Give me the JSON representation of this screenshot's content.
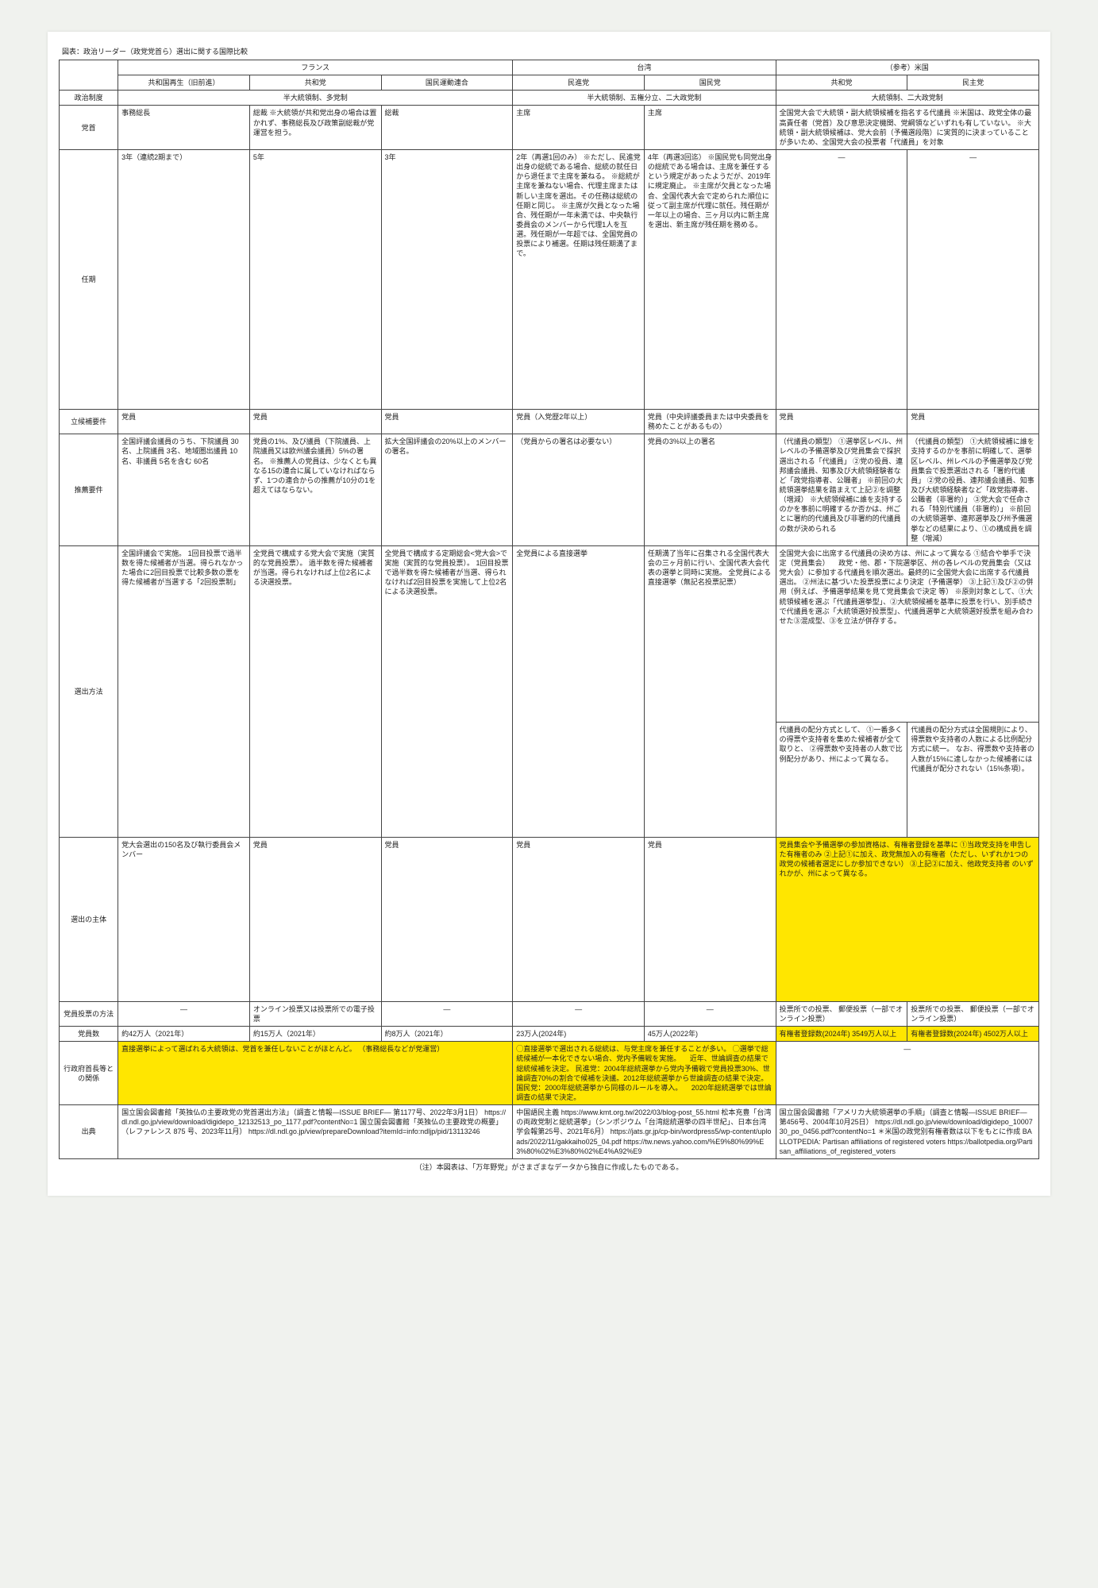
{
  "caption": "図表：政治リーダー（政党党首ら）選出に関する国際比較",
  "countries": [
    "フランス",
    "台湾",
    "（参考）米国"
  ],
  "parties": [
    "共和国再生（旧前進）",
    "共和党",
    "国民運動連合",
    "民進党",
    "国民党",
    "共和党",
    "民主党"
  ],
  "systems": {
    "france": "半大統領制、多党制",
    "taiwan": "半大統領制、五権分立、二大政党制",
    "us": "大統領制、二大政党制"
  },
  "rows": {
    "r1": {
      "label": "政治制度"
    },
    "r2": {
      "label": "党首",
      "fr1": "事務総長",
      "fr2": "総裁\n※大統領が共和党出身の場合は置かれず、事務総長及び政策副総裁が党運営を担う。",
      "fr3": "総裁",
      "tw1": "主席",
      "tw2": "主席",
      "us": "全国党大会で大統領・副大統領候補を指名する代議員\n※米国は、政党全体の最高責任者（党首）及び意思決定機関、党綱領などいずれも有していない。\n※大統領・副大統領候補は、党大会前（予備選段階）に実質的に決まっていることが多いため、全国党大会の投票者「代議員」を対象"
    },
    "r3": {
      "label": "任期",
      "fr1": "3年（連続2期まで）",
      "fr2": "5年",
      "fr3": "3年",
      "tw1": "2年（再選1回のみ）\n※ただし、民進党出身の総統である場合、総統の就任日から退任まで主席を兼ねる。\n※総統が主席を兼ねない場合、代理主席または新しい主席を選出。その任務は総統の任期と同じ。\n※主席が欠員となった場合、残任期が一年未満では、中央執行委員会のメンバーから代理1人を互選。残任期が一年超では、全国党員の投票により補選。任期は残任期満了まで。",
      "tw2": "4年（再選3回迄）\n※国民党も同党出身の総統である場合は、主席を兼任するという規定があったようだが、2019年に規定廃止。\n※主席が欠員となった場合、全国代表大会で定められた順位に従って副主席が代理に就任。残任期が一年以上の場合、三ヶ月以内に新主席を選出、新主席が残任期を務める。",
      "us1": "—",
      "us2": "—"
    },
    "r4": {
      "label": "立候補要件",
      "fr1": "党員",
      "fr2": "党員",
      "fr3": "党員",
      "tw1": "党員（入党歴2年以上）",
      "tw2": "党員（中央評議委員または中央委員を務めたことがあるもの）",
      "us1": "党員",
      "us2": "党員"
    },
    "r5": {
      "label": "推薦要件",
      "fr1": "全国評議会議員のうち、下院議員 30名、上院議員 3名、地域圏出議員 10名、非議員 5名を含む 60名",
      "fr2": "党員の1%、及び議員（下院議員、上院議員又は欧州議会議員）5%の署名。\n\n※推薦人の党員は、少なくとも異なる15の連合に属していなければならず、1つの連合からの推薦が10分の1を超えてはならない。",
      "fr3": "拡大全国評議会の20%以上のメンバーの署名。",
      "tw1": "（党員からの署名は必要ない）",
      "tw2": "党員の3%以上の署名",
      "us1": "（代議員の類型）\n①選挙区レベル、州レベルの予備選挙及び党員集会で採択選出される「代議員」\n②党の役員、連邦議会議員、知事及び大統領経験者など「政党指導者、公職者」\n※前回の大統領選挙結果を踏まえて上記②を調整（増減）\n※大統領候補に誰を支持するのかを事前に明確するか否かは、州ごとに署約的代議員及び非署約的代議員の数が決められる",
      "us2": "（代議員の類型）\n①大統領候補に誰を支持するのかを事前に明確して、選挙区レベル、州レベルの予備選挙及び党員集会で投票選出される「署約代議員」\n②党の役員、連邦議会議員、知事及び大統領経験者など「政党指導者、公職者（非署約）」\n③党大会で任命される「特別代議員（非署約）」\n※前回の大統領選挙、連邦選挙及び州予備選挙などの結果により、①の構成員を調整（増減）"
    },
    "r6": {
      "label": "選出方法",
      "fr1": "全国評議会で実施。\n1回目投票で過半数を得た候補者が当選。得られなかった場合に2回目投票で比較多数の票を得た候補者が当選する「2回投票制」",
      "fr2": "全党員で構成する党大会で実施（実質的な党員投票）。\n過半数を得た候補者が当選。得られなければ上位2名による決選投票。",
      "fr3": "全党員で構成する定期総会<党大会>で実施（実質的な党員投票）。\n1回目投票で過半数を得た候補者が当選、得られなければ2回目投票を実施して上位2名による決選投票。",
      "tw1": "全党員による直接選挙",
      "tw2": "任期満了当年に召集される全国代表大会の三ヶ月前に行い、全国代表大会代表の選挙と同時に実施。\n全党員による直接選挙（無記名投票記票）",
      "us": "全国党大会に出席する代議員の決め方は、州によって異なる\n①結合や挙手で決定（党員集会）\n　政党・他、郡・下院選挙区、州の各レベルの党員集会（又は党大会）に参加する代議員を順次選出。最終的に全国党大会に出席する代議員選出。\n②州法に基づいた投票投票により決定（予備選挙）\n③上記①及び②の併用（例えば、予備選挙結果を見て党員集会で決定 等）\n\n※原則対象として、①大統領候補を選ぶ「代議員選挙型」、②大統領候補を基準に投票を行い、別手続きで代議員を選ぶ「大統領選好投票型」、代議員選挙と大統領選好投票を組み合わせた③混成型、③を立法が併存する。",
      "us1b": "代議員の配分方式として、\n①一番多くの得票や支持者を集めた候補者が全て取りと、\n②得票数や支持者の人数で比例配分があり、州によって異なる。",
      "us2b": "代議員の配分方式は全国規則により、得票数や支持者の人数による比例配分方式に統一。\nなお、得票数や支持者の人数が15%に達しなかった候補者には代議員が配分されない（15%条項）。"
    },
    "r7": {
      "label": "選出の主体",
      "fr1": "党大会選出の150名及び執行委員会メンバー",
      "fr2": "党員",
      "fr3": "党員",
      "tw1": "党員",
      "tw2": "党員",
      "us": "党員集会や予備選挙の参加資格は、有権者登録を基準に\n①当政党支持を申告した有権者のみ\n②上記①に加え、政党無加入の有権者（ただし、いずれか1つの政党の候補者選定にしか参加できない）\n③上記②に加え、他政党支持者\nのいずれかが、州によって異なる。"
    },
    "r8": {
      "label": "党員投票の方法",
      "fr1": "—",
      "fr2": "オンライン投票又は投票所での電子投票",
      "fr3": "—",
      "tw1": "—",
      "tw2": "—",
      "us1": "投票所での投票、\n郵便投票（一部でオンライン投票）",
      "us2": "投票所での投票、\n郵便投票（一部でオンライン投票）"
    },
    "r9": {
      "label": "党員数",
      "fr1": "約42万人（2021年）",
      "fr2": "約15万人（2021年）",
      "fr3": "約8万人（2021年）",
      "tw1": "23万人(2024年)",
      "tw2": "45万人(2022年)",
      "us1": "有権者登録数(2024年)\n3549万人以上",
      "us2": "有権者登録数(2024年)\n4502万人以上"
    },
    "r10": {
      "label": "行政府首長等との関係",
      "fr": "直接選挙によって選ばれる大統領は、党首を兼任しないことがほとんど。\n（事務総長などが党運営）",
      "tw": "◯直接選挙で選出される総統は、与党主席を兼任することが多い。\n◯選挙で総統候補が一本化できない場合、党内予備戦を実施。\n　近年、世論調査の結果で総統候補を決定。\n民進党：2004年総統選挙から党内予備戦で党員投票30%、世論調査70%の割合で候補を決議。2012年総統選挙から世論調査の結果で決定。\n国民党：2000年総統選挙から同様のルールを導入。\n　2020年総統選挙では世論調査の結果で決定。",
      "us": "—"
    },
    "r11": {
      "label": "出典",
      "fr": "国立国会図書館「英独仏の主要政党の党首選出方法」（調査と情報—ISSUE BRIEF— 第1177号、2022年3月1日）\nhttps://dl.ndl.go.jp/view/download/digidepo_12132513_po_1177.pdf?contentNo=1\n\n国立国会図書館「英独仏の主要政党の概要」（レファレンス 875 号、2023年11月）\nhttps://dl.ndl.go.jp/view/prepareDownload?itemId=info:ndljp/pid/13113246",
      "tw": "中国語民主義\nhttps://www.kmt.org.tw/2022/03/blog-post_55.html\n\n松本充豊「台湾の両政党制と総統選挙」（シンポジウム「台湾総統選挙の四半世紀」、日本台湾学会報第25号、2021年6月）\nhttps://jats.gr.jp/cp-bin/wordpress5/wp-content/uploads/2022/11/gakkaiho025_04.pdf\n\nhttps://tw.news.yahoo.com/%E9%80%99%E3%80%02%E3%80%02%E4%A92%E9",
      "us": "国立国会図書館「アメリカ大統領選挙の手順」（調査と情報—ISSUE BRIEF— 第456号、2004年10月25日）\nhttps://dl.ndl.go.jp/view/download/digidepo_1000730_po_0456.pdf?contentNo=1\n\n＊米国の政党別有権者数は以下をもとに作成\nBALLOTPEDIA: Partisan affiliations of registered voters\nhttps://ballotpedia.org/Partisan_affiliations_of_registered_voters"
    }
  },
  "footnote": "（注）本図表は、「万年野党」がさまざまなデータから独自に作成したものである。"
}
